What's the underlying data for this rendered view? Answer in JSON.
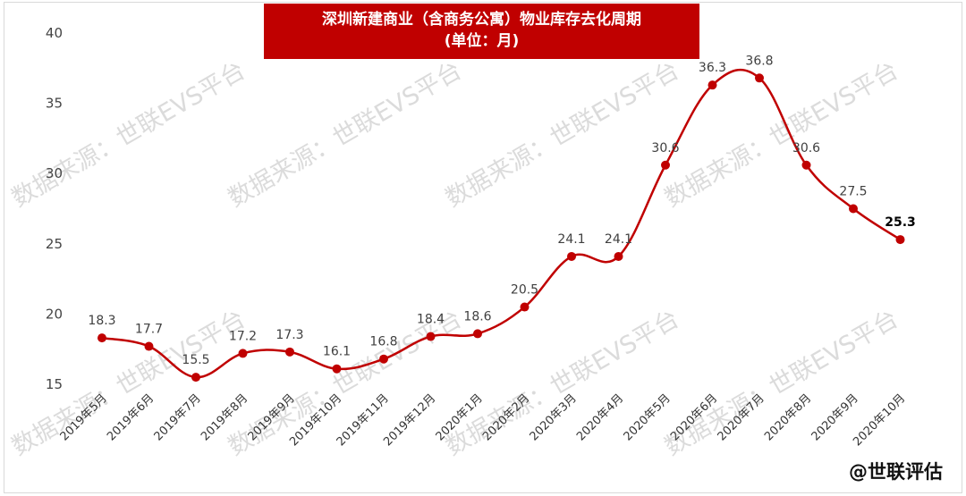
{
  "title_line1": "深圳新建商业（含商务公寓）物业库存去化周期",
  "title_line2": "(单位：月)",
  "footer": "@世联评估",
  "watermark_text": "数据来源：世联EVS平台",
  "colors": {
    "line": "#c00000",
    "title_bg": "#c00000",
    "watermark": "#bfbfbf"
  },
  "chart_data": {
    "type": "line",
    "title": "深圳新建商业（含商务公寓）物业库存去化周期",
    "subtitle": "(单位：月)",
    "categories": [
      "2019年5月",
      "2019年6月",
      "2019年7月",
      "2019年8月",
      "2019年9月",
      "2019年10月",
      "2019年11月",
      "2019年12月",
      "2020年1月",
      "2020年2月",
      "2020年3月",
      "2020年4月",
      "2020年5月",
      "2020年6月",
      "2020年7月",
      "2020年8月",
      "2020年9月",
      "2020年10月"
    ],
    "values": [
      18.3,
      17.7,
      15.5,
      17.2,
      17.3,
      16.1,
      16.8,
      18.4,
      18.6,
      20.5,
      24.1,
      24.1,
      30.6,
      36.3,
      36.8,
      30.6,
      27.5,
      25.3
    ],
    "yticks": [
      15,
      20,
      25,
      30,
      35,
      40
    ],
    "ylim": [
      15,
      40
    ],
    "grid": false,
    "legend": "none",
    "smooth": true
  }
}
